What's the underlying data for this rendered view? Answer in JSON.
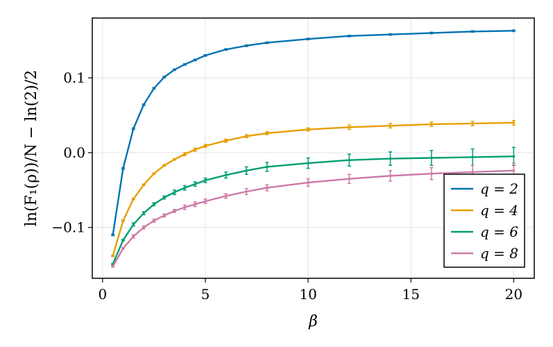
{
  "chart_data": {
    "type": "line",
    "xlabel": "β",
    "ylabel": "ln(F₁(ρ))/N − ln(2)/2",
    "xlim": [
      -0.5,
      21
    ],
    "ylim": [
      -0.168,
      0.18
    ],
    "xticks": [
      0,
      5,
      10,
      15,
      20
    ],
    "xtick_labels": [
      "0",
      "5",
      "10",
      "15",
      "20"
    ],
    "yticks": [
      -0.1,
      0.0,
      0.1
    ],
    "ytick_labels": [
      "−0.1",
      "0.0",
      "0.1"
    ],
    "grid": true,
    "legend_position": "bottom-right",
    "error_bars": true,
    "series": [
      {
        "name": "q = 2",
        "color": "#0072b2",
        "points": [
          [
            0.5,
            -0.11
          ],
          [
            1.0,
            -0.021
          ],
          [
            1.5,
            0.032
          ],
          [
            2.0,
            0.064
          ],
          [
            2.5,
            0.086
          ],
          [
            3.0,
            0.101
          ],
          [
            3.5,
            0.111
          ],
          [
            4.0,
            0.118
          ],
          [
            4.5,
            0.124
          ],
          [
            5.0,
            0.13
          ],
          [
            6,
            0.138
          ],
          [
            7,
            0.143
          ],
          [
            8,
            0.147
          ],
          [
            10,
            0.152
          ],
          [
            12,
            0.156
          ],
          [
            14,
            0.158
          ],
          [
            16,
            0.16
          ],
          [
            18,
            0.162
          ],
          [
            20,
            0.163
          ]
        ],
        "err": [
          0.001,
          0.001,
          0.001,
          0.001,
          0.001,
          0.001,
          0.001,
          0.001,
          0.001,
          0.001,
          0.001,
          0.001,
          0.001,
          0.001,
          0.001,
          0.001,
          0.001,
          0.001,
          0.001
        ]
      },
      {
        "name": "q = 4",
        "color": "#e69f00",
        "points": [
          [
            0.5,
            -0.138
          ],
          [
            1.0,
            -0.091
          ],
          [
            1.5,
            -0.062
          ],
          [
            2.0,
            -0.043
          ],
          [
            2.5,
            -0.028
          ],
          [
            3.0,
            -0.017
          ],
          [
            3.5,
            -0.009
          ],
          [
            4.0,
            -0.002
          ],
          [
            4.5,
            0.004
          ],
          [
            5.0,
            0.009
          ],
          [
            6,
            0.016
          ],
          [
            7,
            0.022
          ],
          [
            8,
            0.026
          ],
          [
            10,
            0.031
          ],
          [
            12,
            0.034
          ],
          [
            14,
            0.036
          ],
          [
            16,
            0.038
          ],
          [
            18,
            0.039
          ],
          [
            20,
            0.04
          ]
        ],
        "err": [
          0.001,
          0.001,
          0.001,
          0.001,
          0.001,
          0.001,
          0.001,
          0.002,
          0.002,
          0.002,
          0.002,
          0.002,
          0.002,
          0.002,
          0.003,
          0.003,
          0.003,
          0.003,
          0.003
        ]
      },
      {
        "name": "q = 6",
        "color": "#009e73",
        "points": [
          [
            0.5,
            -0.149
          ],
          [
            1.0,
            -0.117
          ],
          [
            1.5,
            -0.096
          ],
          [
            2.0,
            -0.081
          ],
          [
            2.5,
            -0.069
          ],
          [
            3.0,
            -0.06
          ],
          [
            3.5,
            -0.053
          ],
          [
            4.0,
            -0.047
          ],
          [
            4.5,
            -0.042
          ],
          [
            5.0,
            -0.037
          ],
          [
            6,
            -0.03
          ],
          [
            7,
            -0.024
          ],
          [
            8,
            -0.019
          ],
          [
            10,
            -0.014
          ],
          [
            12,
            -0.01
          ],
          [
            14,
            -0.008
          ],
          [
            16,
            -0.007
          ],
          [
            18,
            -0.006
          ],
          [
            20,
            -0.005
          ]
        ],
        "err": [
          0.001,
          0.001,
          0.002,
          0.002,
          0.002,
          0.002,
          0.003,
          0.003,
          0.003,
          0.003,
          0.004,
          0.005,
          0.006,
          0.007,
          0.008,
          0.009,
          0.01,
          0.011,
          0.012
        ]
      },
      {
        "name": "q = 8",
        "color": "#cc79a7",
        "points": [
          [
            0.5,
            -0.152
          ],
          [
            1.0,
            -0.128
          ],
          [
            1.5,
            -0.112
          ],
          [
            2.0,
            -0.1
          ],
          [
            2.5,
            -0.091
          ],
          [
            3.0,
            -0.084
          ],
          [
            3.5,
            -0.078
          ],
          [
            4.0,
            -0.073
          ],
          [
            4.5,
            -0.069
          ],
          [
            5.0,
            -0.065
          ],
          [
            6,
            -0.058
          ],
          [
            7,
            -0.052
          ],
          [
            8,
            -0.047
          ],
          [
            10,
            -0.04
          ],
          [
            12,
            -0.035
          ],
          [
            14,
            -0.031
          ],
          [
            16,
            -0.028
          ],
          [
            18,
            -0.026
          ],
          [
            20,
            -0.024
          ]
        ],
        "err": [
          0.001,
          0.001,
          0.002,
          0.002,
          0.002,
          0.002,
          0.002,
          0.003,
          0.003,
          0.003,
          0.003,
          0.004,
          0.004,
          0.005,
          0.006,
          0.007,
          0.008,
          0.009,
          0.01
        ]
      }
    ]
  }
}
